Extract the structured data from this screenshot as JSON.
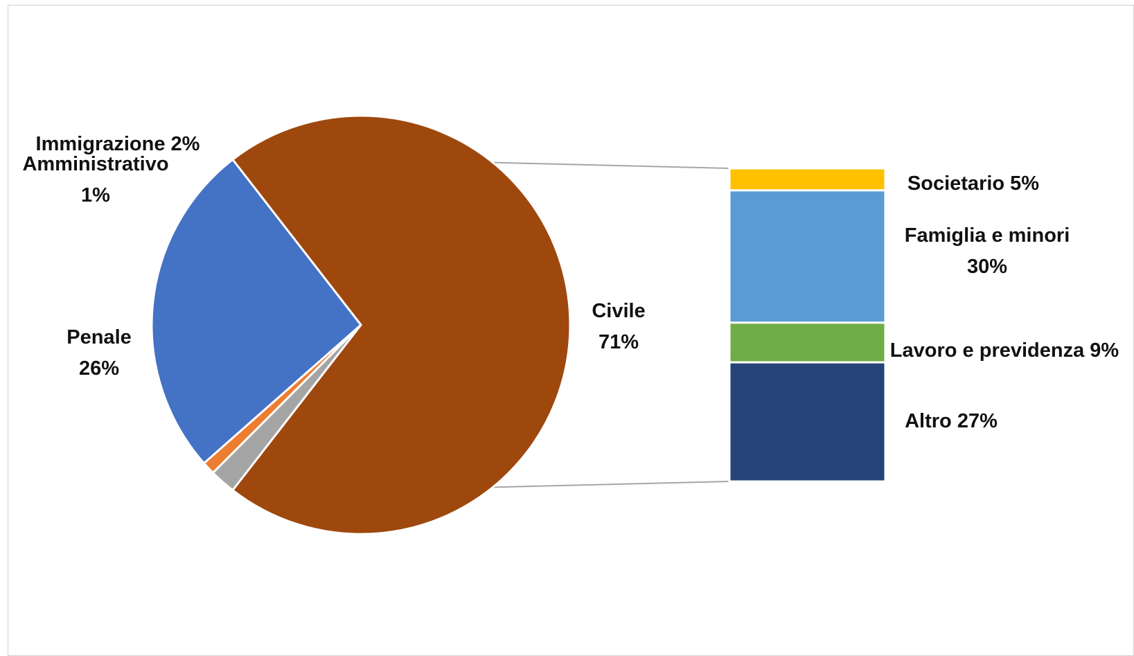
{
  "chart_data": {
    "type": "pie",
    "variant": "bar-of-pie",
    "slices": [
      {
        "name": "Civile",
        "label": "Civile",
        "value_label": "71%",
        "value": 71,
        "color": "#9E480E"
      },
      {
        "name": "Penale",
        "label": "Penale",
        "value_label": "26%",
        "value": 26,
        "color": "#4472C4"
      },
      {
        "name": "Amministrativo",
        "label": "Amministrativo",
        "value_label": "1%",
        "value": 1,
        "color": "#ED7D31"
      },
      {
        "name": "Immigrazione",
        "label": "Immigrazione 2%",
        "value": 2,
        "color": "#A5A5A5"
      }
    ],
    "breakdown_of": "Civile",
    "breakdown": [
      {
        "name": "Societario",
        "label": "Societario 5%",
        "value": 5,
        "color": "#FFC000"
      },
      {
        "name": "Famiglia e minori",
        "label": "Famiglia e minori",
        "value_label": "30%",
        "value": 30,
        "color": "#5B9BD5"
      },
      {
        "name": "Lavoro e previdenza",
        "label": "Lavoro e previdenza 9%",
        "value": 9,
        "color": "#70AD47"
      },
      {
        "name": "Altro",
        "label": "Altro 27%",
        "value": 27,
        "color": "#264478"
      }
    ],
    "connector_color": "#A6A6A6",
    "legend": "none"
  }
}
